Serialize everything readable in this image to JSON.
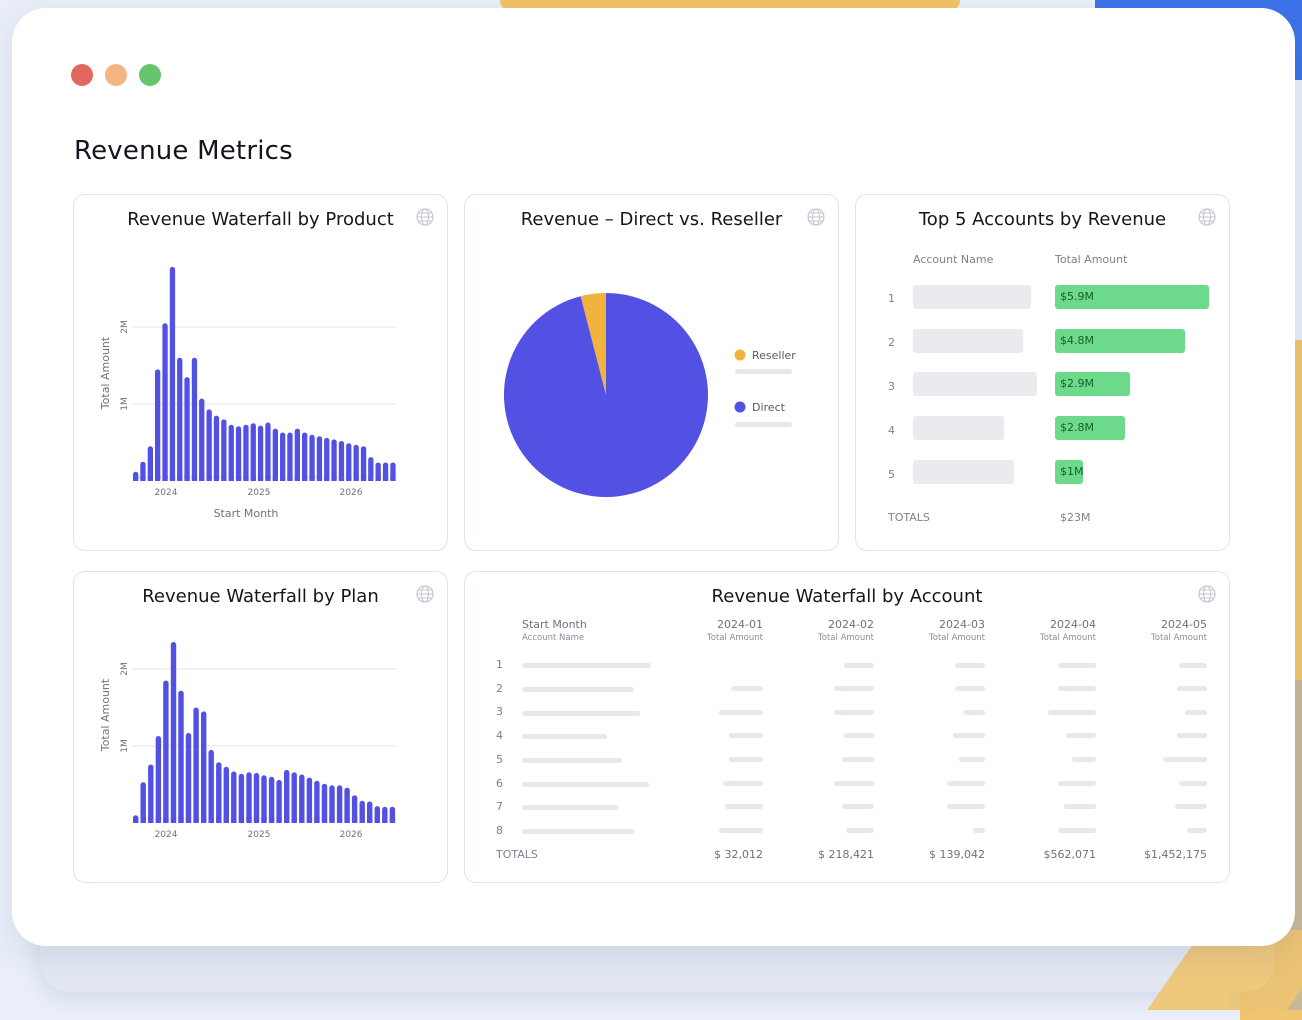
{
  "page": {
    "title": "Revenue Metrics"
  },
  "colors": {
    "accent": "#5350e4",
    "reseller": "#f2b33d",
    "positive": "#6dd98a"
  },
  "cards": {
    "product": {
      "title": "Revenue Waterfall by Product",
      "ylabel": "Total Amount",
      "xlabel": "Start Month",
      "yticks": [
        "1M",
        "2M"
      ],
      "xticks": [
        "2024",
        "2025",
        "2026"
      ]
    },
    "pie": {
      "title": "Revenue – Direct vs. Reseller",
      "legend": [
        "Reseller",
        "Direct"
      ]
    },
    "top5": {
      "title": "Top 5 Accounts by Revenue",
      "col_name": "Account Name",
      "col_amount": "Total Amount",
      "rows": [
        {
          "rank": "1",
          "amount": "$5.9M"
        },
        {
          "rank": "2",
          "amount": "$4.8M"
        },
        {
          "rank": "3",
          "amount": "$2.9M"
        },
        {
          "rank": "4",
          "amount": "$2.8M"
        },
        {
          "rank": "5",
          "amount": "$1M"
        }
      ],
      "totals_label": "TOTALS",
      "totals_value": "$23M"
    },
    "plan": {
      "title": "Revenue Waterfall by Plan",
      "ylabel": "Total Amount",
      "yticks": [
        "1M",
        "2M"
      ],
      "xticks": [
        "2024",
        "2025",
        "2026"
      ]
    },
    "account": {
      "title": "Revenue Waterfall by Account",
      "row_header_1": "Start Month",
      "row_header_2": "Account Name",
      "columns": [
        {
          "month": "2024-01",
          "sub": "Total Amount"
        },
        {
          "month": "2024-02",
          "sub": "Total Amount"
        },
        {
          "month": "2024-03",
          "sub": "Total Amount"
        },
        {
          "month": "2024-04",
          "sub": "Total Amount"
        },
        {
          "month": "2024-05",
          "sub": "Total Amount"
        }
      ],
      "row_numbers": [
        "1",
        "2",
        "3",
        "4",
        "5",
        "6",
        "7",
        "8"
      ],
      "totals_label": "TOTALS",
      "totals": [
        "$ 32,012",
        "$ 218,421",
        "$ 139,042",
        "$562,071",
        "$1,452,175"
      ]
    }
  },
  "chart_data": [
    {
      "type": "bar",
      "ylabel": "Total Amount",
      "xlabel": "Start Month",
      "ylim": [
        0,
        2.8
      ],
      "xticks": [
        "2024",
        "2025",
        "2026"
      ],
      "values": [
        0.12,
        0.25,
        0.45,
        1.45,
        2.05,
        2.78,
        1.6,
        1.35,
        1.6,
        1.07,
        0.93,
        0.85,
        0.8,
        0.73,
        0.71,
        0.73,
        0.75,
        0.72,
        0.76,
        0.68,
        0.63,
        0.63,
        0.68,
        0.63,
        0.6,
        0.58,
        0.56,
        0.54,
        0.52,
        0.49,
        0.47,
        0.45,
        0.31,
        0.24,
        0.24,
        0.24
      ]
    },
    {
      "type": "pie",
      "labels": [
        "Reseller",
        "Direct"
      ],
      "values": [
        4,
        96
      ]
    },
    {
      "type": "bar",
      "ylabel": "Total Amount",
      "ylim": [
        0,
        2.8
      ],
      "xticks": [
        "2024",
        "2025",
        "2026"
      ],
      "values": [
        0.1,
        0.53,
        0.76,
        1.13,
        1.85,
        2.35,
        1.72,
        1.17,
        1.5,
        1.45,
        0.95,
        0.79,
        0.73,
        0.67,
        0.64,
        0.66,
        0.65,
        0.62,
        0.6,
        0.56,
        0.69,
        0.66,
        0.63,
        0.59,
        0.55,
        0.51,
        0.49,
        0.49,
        0.46,
        0.36,
        0.29,
        0.28,
        0.22,
        0.21,
        0.21
      ]
    }
  ]
}
